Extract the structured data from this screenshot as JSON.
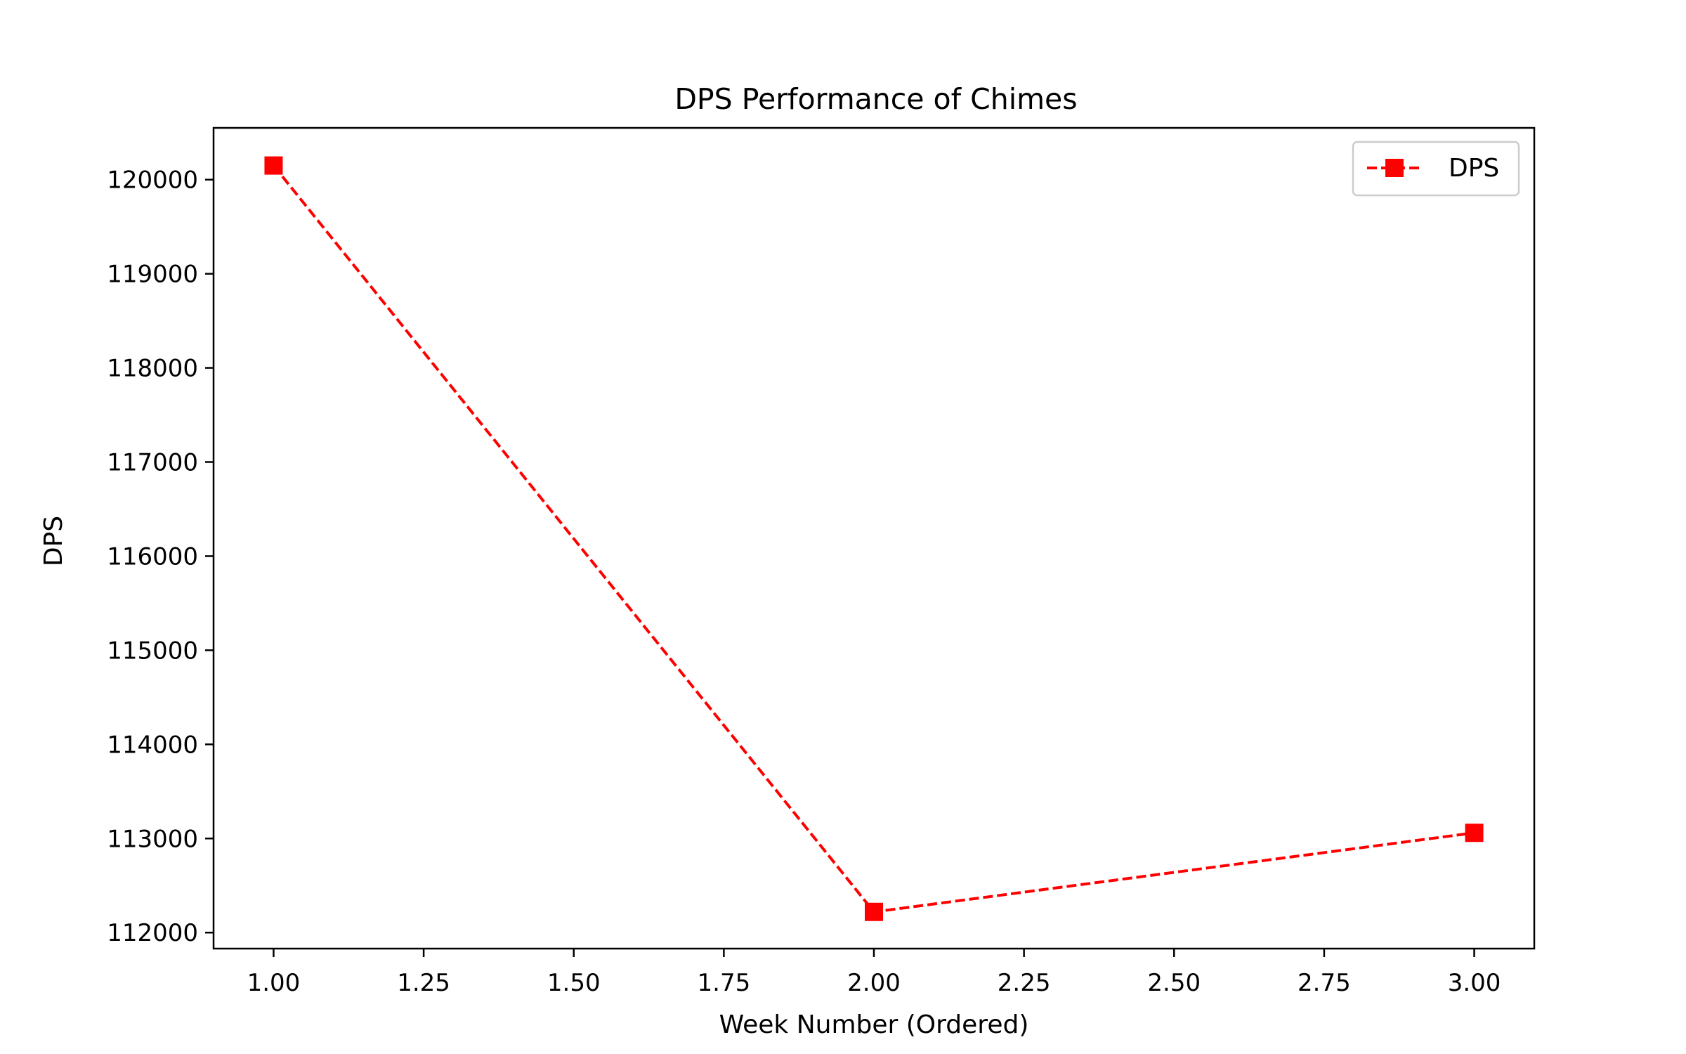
{
  "chart_data": {
    "type": "line",
    "title": "DPS Performance of Chimes",
    "xlabel": "Week Number (Ordered)",
    "ylabel": "DPS",
    "x": [
      1.0,
      2.0,
      3.0
    ],
    "series": [
      {
        "name": "DPS",
        "values": [
          120150,
          112220,
          113060
        ],
        "color": "#ff0000",
        "line_style": "dashed",
        "marker": "square"
      }
    ],
    "xlim": [
      0.9,
      3.1
    ],
    "ylim": [
      111830,
      120550
    ],
    "xticks": [
      1.0,
      1.25,
      1.5,
      1.75,
      2.0,
      2.25,
      2.5,
      2.75,
      3.0
    ],
    "xtick_labels": [
      "1.00",
      "1.25",
      "1.50",
      "1.75",
      "2.00",
      "2.25",
      "2.50",
      "2.75",
      "3.00"
    ],
    "yticks": [
      112000,
      113000,
      114000,
      115000,
      116000,
      117000,
      118000,
      119000,
      120000
    ],
    "ytick_labels": [
      "112000",
      "113000",
      "114000",
      "115000",
      "116000",
      "117000",
      "118000",
      "119000",
      "120000"
    ],
    "grid": false,
    "legend_position": "top-right"
  }
}
